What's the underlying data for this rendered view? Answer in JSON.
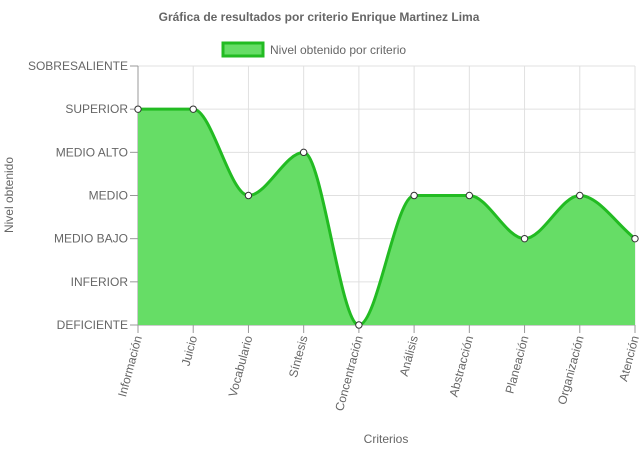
{
  "chart_data": {
    "type": "area",
    "title": "Gráfica de resultados por criterio Enrique Martinez Lima",
    "xlabel": "Criterios",
    "ylabel": "Nivel obtenido",
    "legend": {
      "position": "top",
      "label": "Nivel obtenido por criterio"
    },
    "categories": [
      "Información",
      "Juicio",
      "Vocabulario",
      "Síntesis",
      "Concentración",
      "Análisis",
      "Abstracción",
      "Planeación",
      "Organización",
      "Atención"
    ],
    "y_levels": [
      "DEFICIENTE",
      "INFERIOR",
      "MEDIO BAJO",
      "MEDIO",
      "MEDIO ALTO",
      "SUPERIOR",
      "SOBRESALIENTE"
    ],
    "values": [
      5,
      5,
      3,
      4,
      0,
      3,
      3,
      2,
      3,
      2
    ],
    "ylim": [
      0,
      6
    ],
    "grid": true,
    "colors": {
      "fill": "#66dd66",
      "line": "#22bb22",
      "point_fill": "#ffffff",
      "point_stroke": "#333333",
      "grid": "#e0e0e0",
      "text": "#666666"
    }
  }
}
